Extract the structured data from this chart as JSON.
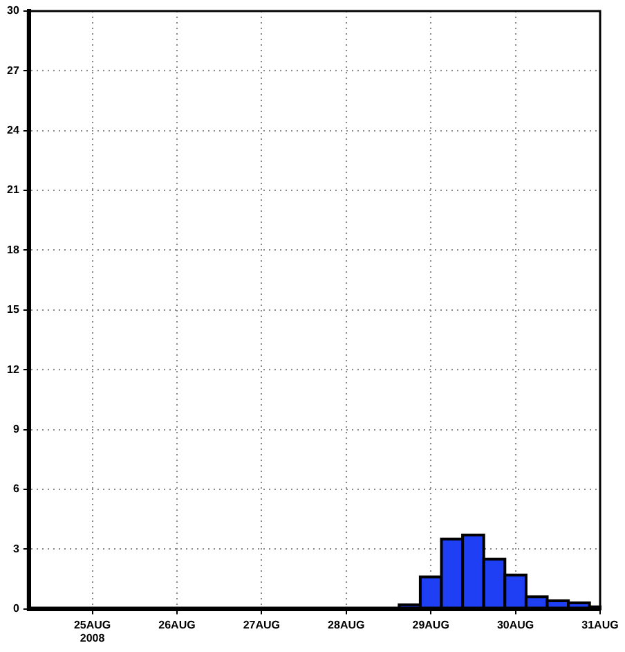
{
  "chart_data": {
    "type": "histogram",
    "bins": [
      "2008-08-28T15:00",
      "2008-08-28T21:00",
      "2008-08-29T03:00",
      "2008-08-29T09:00",
      "2008-08-29T15:00",
      "2008-08-29T21:00",
      "2008-08-30T03:00",
      "2008-08-30T09:00",
      "2008-08-30T15:00",
      "2008-08-30T21:00",
      "2008-08-31T00:00"
    ],
    "values": [
      0.2,
      1.6,
      3.5,
      3.7,
      2.5,
      1.7,
      0.6,
      0.4,
      0.3,
      0.1
    ],
    "color": "#1f3ff5",
    "xlim": [
      "2008-08-24T06:00",
      "2008-08-31T00:00"
    ],
    "xticks": [
      {
        "value": "2008-08-25",
        "label": "25AUG\n2008"
      },
      {
        "value": "2008-08-26",
        "label": "26AUG"
      },
      {
        "value": "2008-08-27",
        "label": "27AUG"
      },
      {
        "value": "2008-08-28",
        "label": "28AUG"
      },
      {
        "value": "2008-08-29",
        "label": "29AUG"
      },
      {
        "value": "2008-08-30",
        "label": "30AUG"
      },
      {
        "value": "2008-08-31",
        "label": "31AUG"
      }
    ],
    "ylim": [
      0,
      30
    ],
    "yticks": [
      0,
      3,
      6,
      9,
      12,
      15,
      18,
      21,
      24,
      27,
      30
    ],
    "grid": true
  }
}
